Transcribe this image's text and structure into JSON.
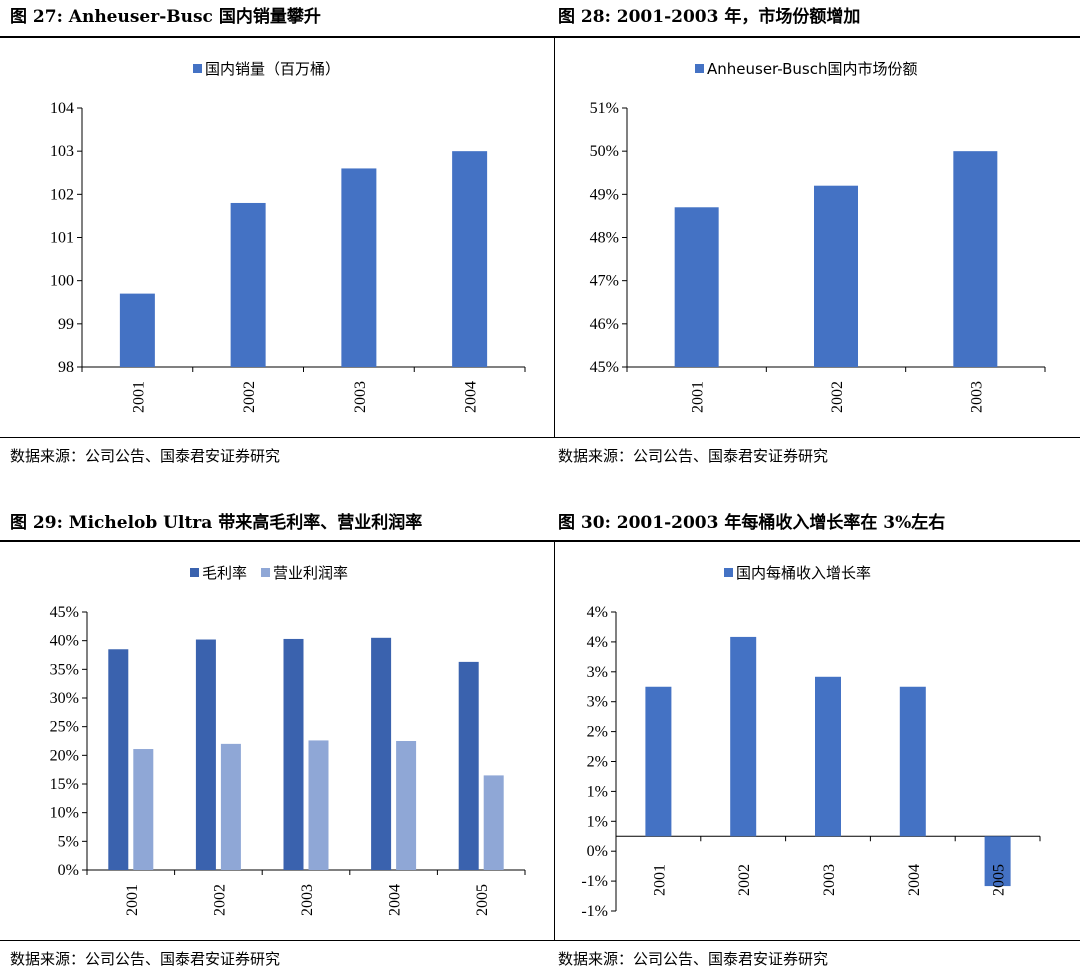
{
  "charts": [
    {
      "title": "图 27: Anheuser-Busc 国内销量攀升",
      "source": "数据来源：公司公告、国泰君安证券研究",
      "chart_data": {
        "type": "bar",
        "categories": [
          "2001",
          "2002",
          "2003",
          "2004"
        ],
        "series": [
          {
            "name": "国内销量（百万桶）",
            "values": [
              99.7,
              101.8,
              102.6,
              103.0
            ],
            "color": "#4472C4"
          }
        ],
        "ylim": [
          98,
          104
        ],
        "yticks": [
          "98",
          "99",
          "100",
          "101",
          "102",
          "103",
          "104"
        ]
      }
    },
    {
      "title": "图 28: 2001-2003 年，市场份额增加",
      "source": "数据来源：公司公告、国泰君安证券研究",
      "chart_data": {
        "type": "bar",
        "categories": [
          "2001",
          "2002",
          "2003"
        ],
        "series": [
          {
            "name": "Anheuser-Busch国内市场份额",
            "values": [
              48.7,
              49.2,
              50.0
            ],
            "color": "#4472C4"
          }
        ],
        "ylim": [
          45,
          51
        ],
        "yticks": [
          "45%",
          "46%",
          "47%",
          "48%",
          "49%",
          "50%",
          "51%"
        ]
      }
    },
    {
      "title": "图 29: Michelob Ultra 带来高毛利率、营业利润率",
      "source": "数据来源：公司公告、国泰君安证券研究",
      "chart_data": {
        "type": "bar",
        "categories": [
          "2001",
          "2002",
          "2003",
          "2004",
          "2005"
        ],
        "series": [
          {
            "name": "毛利率",
            "values": [
              38.5,
              40.2,
              40.3,
              40.5,
              36.3
            ],
            "color": "#3A62AE"
          },
          {
            "name": "营业利润率",
            "values": [
              21.1,
              22.0,
              22.6,
              22.5,
              16.5
            ],
            "color": "#8FA7D6"
          }
        ],
        "ylim": [
          0,
          45
        ],
        "yticks": [
          "0%",
          "5%",
          "10%",
          "15%",
          "20%",
          "25%",
          "30%",
          "35%",
          "40%",
          "45%"
        ]
      }
    },
    {
      "title": "图 30: 2001-2003 年每桶收入增长率在 3%左右",
      "source": "数据来源：公司公告、国泰君安证券研究",
      "chart_data": {
        "type": "bar",
        "categories": [
          "2001",
          "2002",
          "2003",
          "2004",
          "2005"
        ],
        "series": [
          {
            "name": "国内每桶收入增长率",
            "values": [
              3.0,
              4.0,
              3.2,
              3.0,
              -1.0
            ],
            "color": "#4472C4"
          }
        ],
        "ylim": [
          -1.5,
          4.5
        ],
        "yticks": [
          "-1%",
          "-1%",
          "0%",
          "1%",
          "1%",
          "2%",
          "2%",
          "3%",
          "3%",
          "4%",
          "4%"
        ]
      }
    }
  ]
}
